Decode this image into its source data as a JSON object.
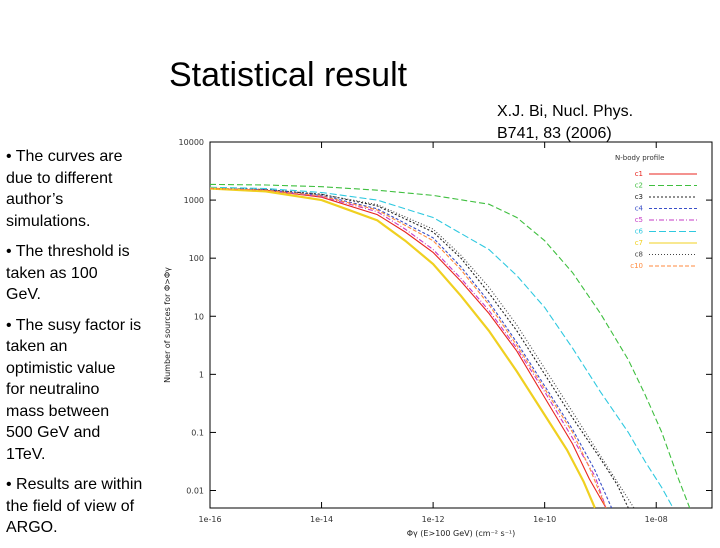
{
  "slide": {
    "title": "Statistical result",
    "citation": [
      "X.J. Bi, Nucl. Phys.",
      "B741, 83 (2006)"
    ],
    "bullets": [
      [
        "• The curves are",
        "due to different",
        "author’s",
        "simulations."
      ],
      [
        "• The threshold is",
        "taken as 100",
        "GeV."
      ],
      [
        "• The susy factor is",
        "taken an",
        "optimistic value",
        "for neutralino",
        "mass between",
        "500 GeV and",
        "1TeV."
      ],
      [
        "• Results are within",
        "the field of view of",
        "ARGO."
      ]
    ]
  },
  "chart_data": {
    "type": "line",
    "title": "",
    "xlabel": "Φγ (E>100 GeV) (cm⁻² s⁻¹)",
    "ylabel": "Number of sources for Φ>Φγ",
    "xscale": "log",
    "yscale": "log",
    "xlim": [
      1e-16,
      1e-07
    ],
    "ylim": [
      0.005,
      10000
    ],
    "x_ticks": [
      "1e-16",
      "1e-14",
      "1e-12",
      "1e-10",
      "1e-08"
    ],
    "y_ticks": [
      "10000",
      "1000",
      "100",
      "10",
      "1",
      "0.1",
      "0.01"
    ],
    "legend_title": "N-body profile",
    "legend_placement": "top-right",
    "grid": false,
    "colors": [
      "#e8251f",
      "#3fbf3f",
      "#222222",
      "#3a4fc8",
      "#c63ac6",
      "#2fc9e0",
      "#f0d020",
      "#444444",
      "#ff8a3d"
    ],
    "series": [
      {
        "name": "c1",
        "points": [
          [
            -16,
            3.2
          ],
          [
            -15,
            3.17
          ],
          [
            -14,
            3.05
          ],
          [
            -13,
            2.75
          ],
          [
            -12.5,
            2.45
          ],
          [
            -12,
            2.1
          ],
          [
            -11.5,
            1.6
          ],
          [
            -11,
            1.05
          ],
          [
            -10.5,
            0.4
          ],
          [
            -10,
            -0.4
          ],
          [
            -9.5,
            -1.2
          ],
          [
            -9.2,
            -1.8
          ],
          [
            -8.9,
            -2.3
          ]
        ]
      },
      {
        "name": "c2",
        "points": [
          [
            -16,
            3.27
          ],
          [
            -15,
            3.26
          ],
          [
            -14,
            3.23
          ],
          [
            -13,
            3.17
          ],
          [
            -12,
            3.08
          ],
          [
            -11,
            2.93
          ],
          [
            -10.5,
            2.7
          ],
          [
            -10,
            2.3
          ],
          [
            -9.5,
            1.75
          ],
          [
            -9,
            1.05
          ],
          [
            -8.5,
            0.25
          ],
          [
            -8.2,
            -0.35
          ],
          [
            -7.9,
            -1.0
          ],
          [
            -7.6,
            -1.8
          ],
          [
            -7.4,
            -2.3
          ]
        ]
      },
      {
        "name": "c3",
        "points": [
          [
            -16,
            3.2
          ],
          [
            -15,
            3.18
          ],
          [
            -14,
            3.1
          ],
          [
            -13,
            2.9
          ],
          [
            -12,
            2.45
          ],
          [
            -11.5,
            2.0
          ],
          [
            -11,
            1.4
          ],
          [
            -10.5,
            0.75
          ],
          [
            -10,
            0.0
          ],
          [
            -9.5,
            -0.75
          ],
          [
            -9,
            -1.45
          ],
          [
            -8.7,
            -1.9
          ],
          [
            -8.5,
            -2.3
          ]
        ]
      },
      {
        "name": "c4",
        "points": [
          [
            -16,
            3.2
          ],
          [
            -15,
            3.18
          ],
          [
            -14,
            3.08
          ],
          [
            -13,
            2.85
          ],
          [
            -12,
            2.35
          ],
          [
            -11.5,
            1.85
          ],
          [
            -11,
            1.25
          ],
          [
            -10.5,
            0.55
          ],
          [
            -10,
            -0.2
          ],
          [
            -9.5,
            -0.95
          ],
          [
            -9.1,
            -1.65
          ],
          [
            -8.8,
            -2.3
          ]
        ]
      },
      {
        "name": "c5",
        "points": [
          [
            -16,
            3.2
          ],
          [
            -15,
            3.17
          ],
          [
            -14,
            3.06
          ],
          [
            -13,
            2.8
          ],
          [
            -12.5,
            2.5
          ],
          [
            -12,
            2.15
          ],
          [
            -11.5,
            1.65
          ],
          [
            -11,
            1.1
          ],
          [
            -10.5,
            0.45
          ],
          [
            -10,
            -0.3
          ],
          [
            -9.5,
            -1.1
          ],
          [
            -9.1,
            -1.75
          ],
          [
            -8.9,
            -2.3
          ]
        ]
      },
      {
        "name": "c6",
        "points": [
          [
            -16,
            3.22
          ],
          [
            -15,
            3.2
          ],
          [
            -14,
            3.13
          ],
          [
            -13,
            3.0
          ],
          [
            -12,
            2.7
          ],
          [
            -11,
            2.15
          ],
          [
            -10.5,
            1.7
          ],
          [
            -10,
            1.15
          ],
          [
            -9.5,
            0.45
          ],
          [
            -9,
            -0.3
          ],
          [
            -8.5,
            -1.0
          ],
          [
            -8.2,
            -1.5
          ],
          [
            -7.9,
            -1.95
          ],
          [
            -7.7,
            -2.3
          ]
        ]
      },
      {
        "name": "c7",
        "points": [
          [
            -16,
            3.2
          ],
          [
            -15,
            3.15
          ],
          [
            -14,
            3.0
          ],
          [
            -13,
            2.65
          ],
          [
            -12.5,
            2.3
          ],
          [
            -12,
            1.9
          ],
          [
            -11.5,
            1.35
          ],
          [
            -11,
            0.75
          ],
          [
            -10.5,
            0.05
          ],
          [
            -10,
            -0.7
          ],
          [
            -9.6,
            -1.3
          ],
          [
            -9.3,
            -1.85
          ],
          [
            -9.1,
            -2.3
          ]
        ]
      },
      {
        "name": "c8",
        "points": [
          [
            -16,
            3.2
          ],
          [
            -15,
            3.18
          ],
          [
            -14,
            3.1
          ],
          [
            -13,
            2.92
          ],
          [
            -12,
            2.5
          ],
          [
            -11.5,
            2.05
          ],
          [
            -11,
            1.5
          ],
          [
            -10.5,
            0.85
          ],
          [
            -10,
            0.1
          ],
          [
            -9.5,
            -0.65
          ],
          [
            -9,
            -1.4
          ],
          [
            -8.6,
            -2.0
          ],
          [
            -8.4,
            -2.3
          ]
        ]
      },
      {
        "name": "c10",
        "points": [
          [
            -16,
            3.2
          ],
          [
            -15,
            3.17
          ],
          [
            -14,
            3.07
          ],
          [
            -13,
            2.83
          ],
          [
            -12,
            2.3
          ],
          [
            -11.5,
            1.8
          ],
          [
            -11,
            1.2
          ],
          [
            -10.5,
            0.5
          ],
          [
            -10,
            -0.25
          ],
          [
            -9.5,
            -1.0
          ],
          [
            -9.2,
            -1.6
          ],
          [
            -8.9,
            -2.3
          ]
        ]
      }
    ]
  }
}
